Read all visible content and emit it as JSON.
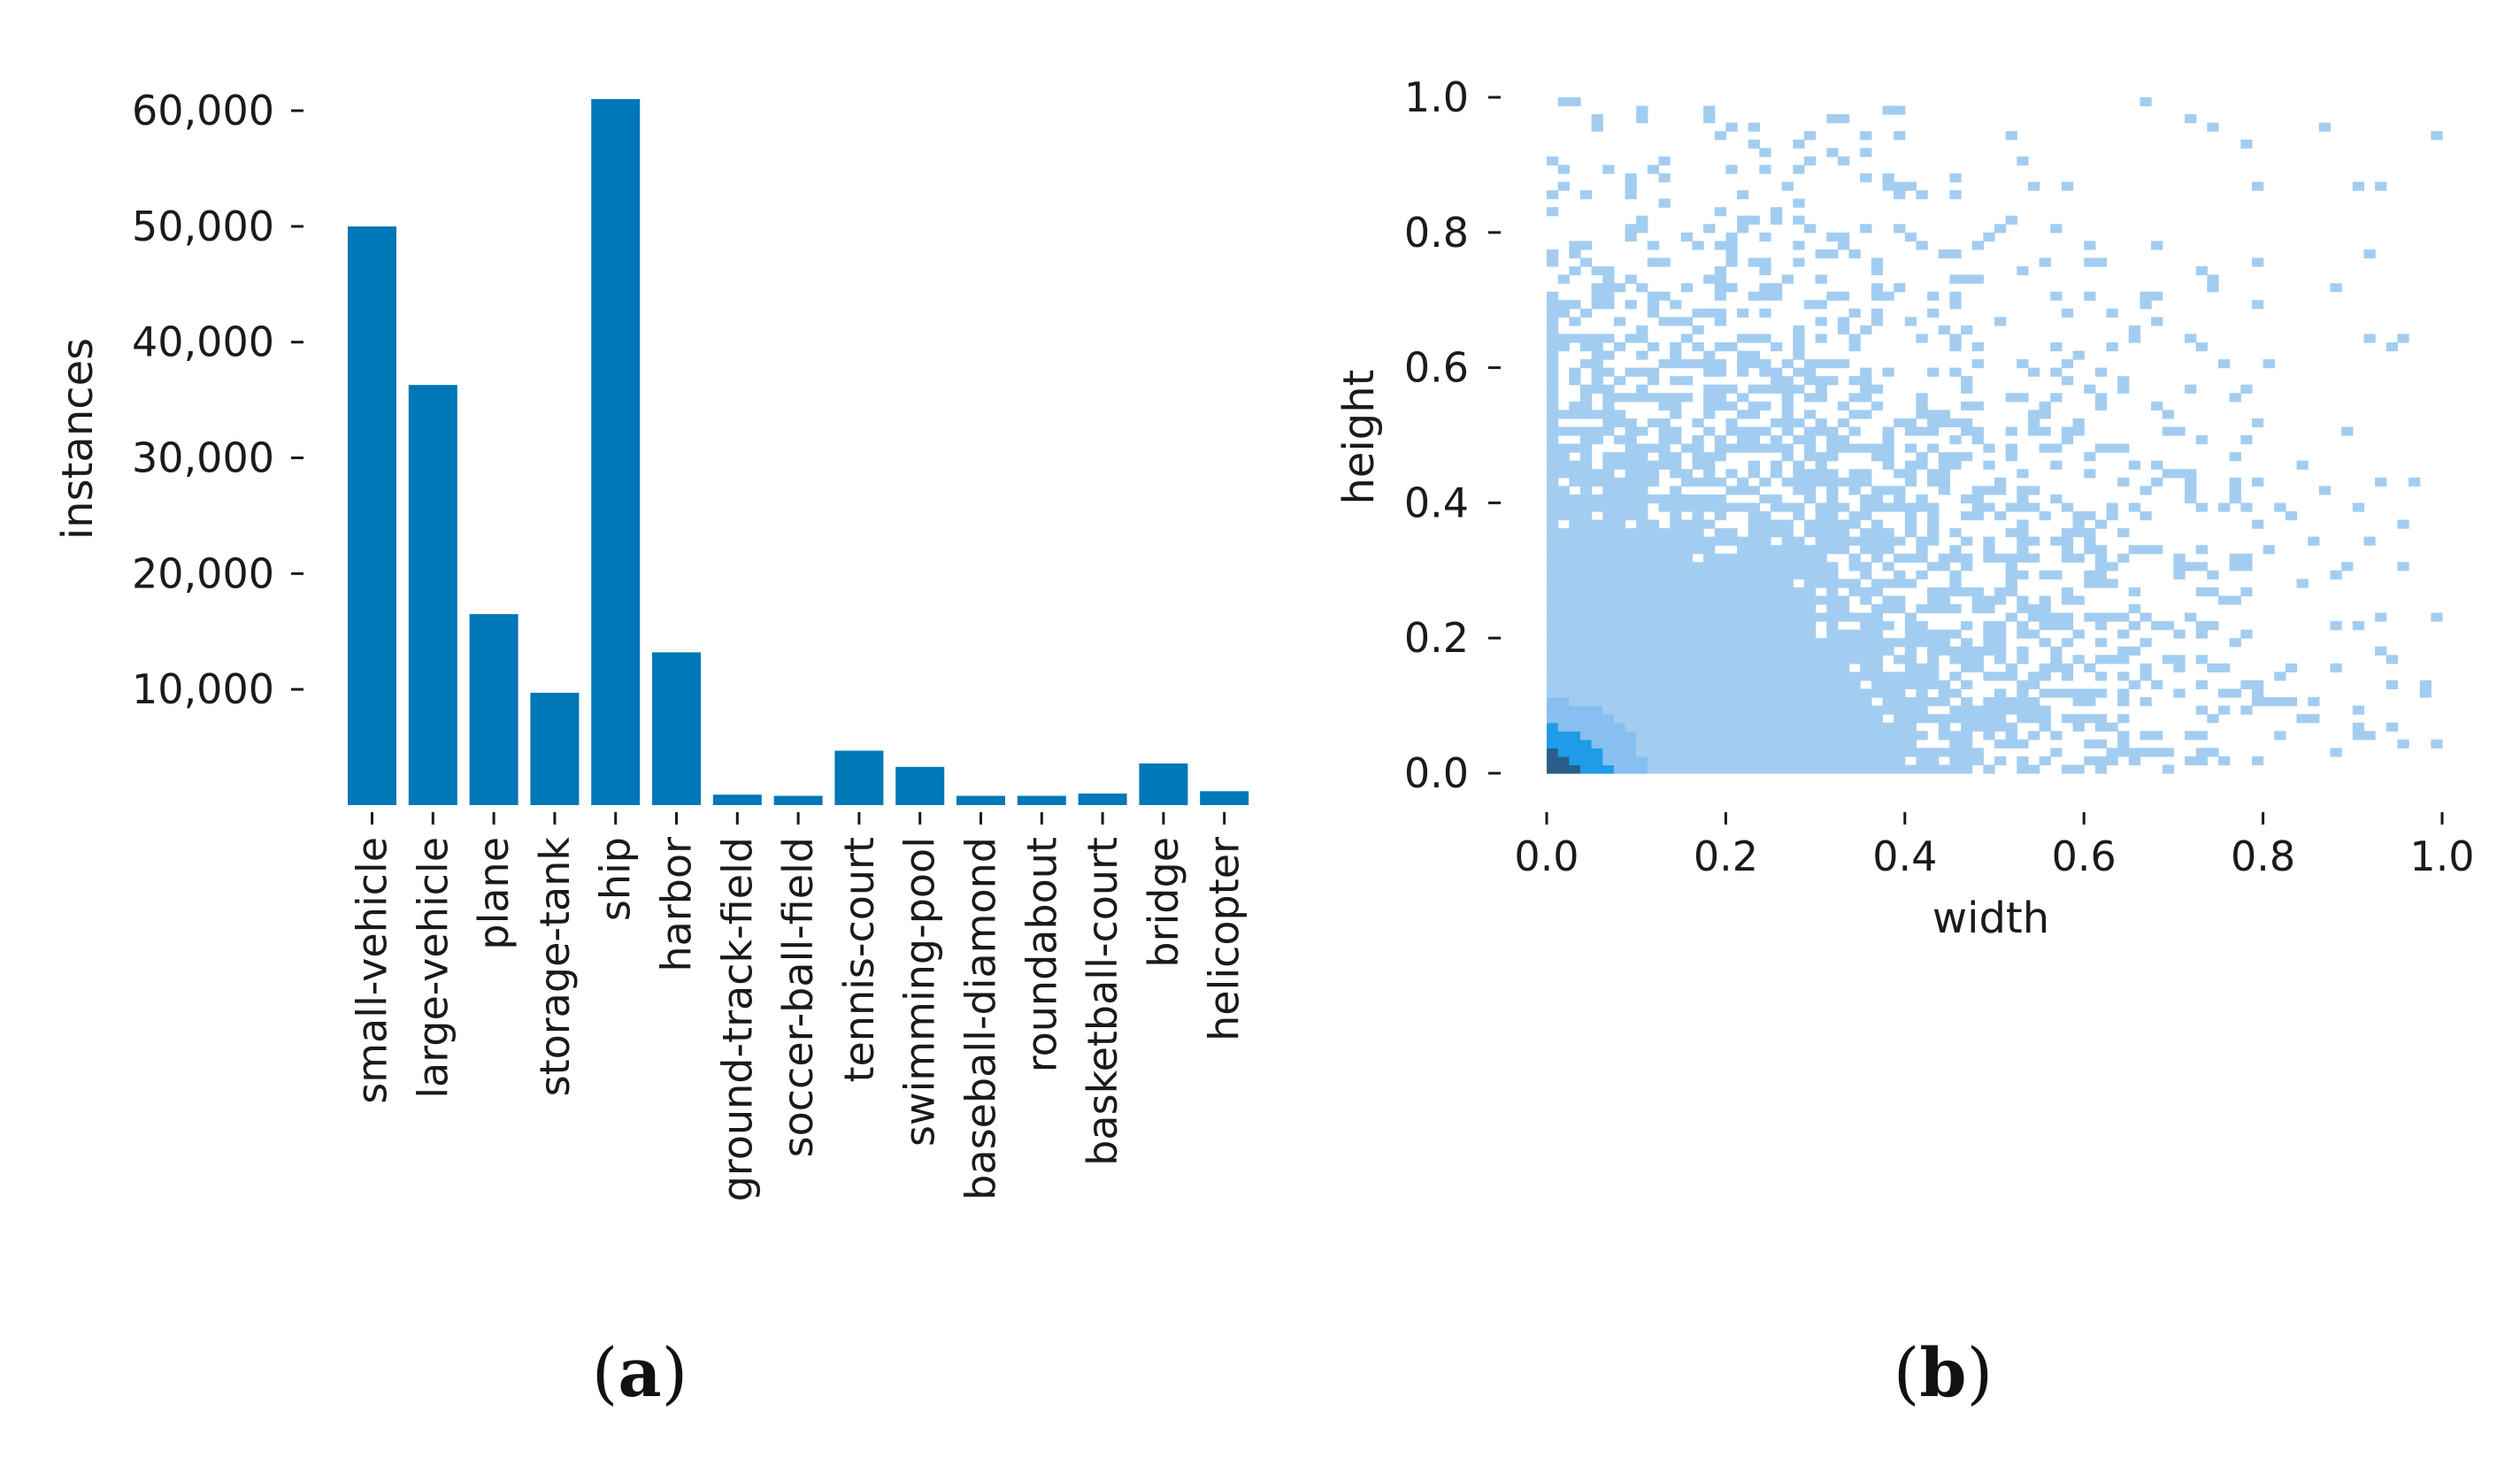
{
  "colors": {
    "bar": "#0077b6",
    "hist_light": "#a3cdf0",
    "hist_mid": "#86bff0",
    "hist_dense": "#1f9be8",
    "hist_peak": "#2a5f8a",
    "text": "#1a1a1a"
  },
  "chart_data": [
    {
      "type": "bar",
      "panel": "a",
      "caption": "(a)",
      "caption_letter": "a",
      "ylabel": "instances",
      "xlabel": "",
      "ylim": [
        0,
        61000
      ],
      "yticks": [
        10000,
        20000,
        30000,
        40000,
        50000,
        60000
      ],
      "ytick_labels": [
        "10,000",
        "20,000",
        "30,000",
        "40,000",
        "50,000",
        "60,000"
      ],
      "categories": [
        "small-vehicle",
        "large-vehicle",
        "plane",
        "storage-tank",
        "ship",
        "harbor",
        "ground-track-field",
        "soccer-ball-field",
        "tennis-court",
        "swimming-pool",
        "baseball-diamond",
        "roundabout",
        "basketball-court",
        "bridge",
        "helicopter"
      ],
      "values": [
        50000,
        36300,
        16500,
        9700,
        61000,
        13200,
        900,
        800,
        4700,
        3300,
        800,
        800,
        1000,
        3600,
        1200
      ]
    },
    {
      "type": "heatmap",
      "panel": "b",
      "caption": "(b)",
      "caption_letter": "b",
      "xlabel": "width",
      "ylabel": "height",
      "xlim": [
        0,
        1
      ],
      "ylim": [
        0,
        1
      ],
      "xticks": [
        0.0,
        0.2,
        0.4,
        0.6,
        0.8,
        1.0
      ],
      "xtick_labels": [
        "0.0",
        "0.2",
        "0.4",
        "0.6",
        "0.8",
        "1.0"
      ],
      "yticks": [
        0.0,
        0.2,
        0.4,
        0.6,
        0.8,
        1.0
      ],
      "ytick_labels": [
        "0.0",
        "0.2",
        "0.4",
        "0.6",
        "0.8",
        "1.0"
      ],
      "description": "2D histogram of normalized bounding-box width vs height; density concentrated near the origin",
      "peak": {
        "width": 0.025,
        "height": 0.025
      }
    }
  ]
}
